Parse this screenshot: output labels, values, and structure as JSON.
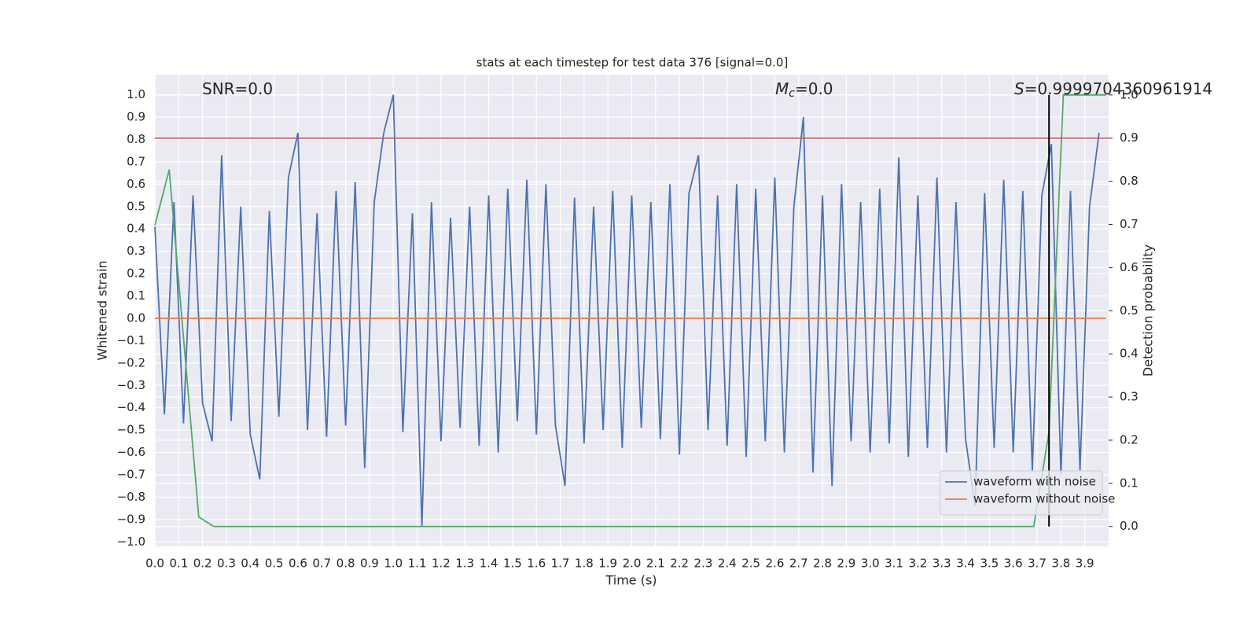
{
  "chart_data": {
    "type": "line",
    "title": "stats at each timestep for test data 376 [signal=0.0]",
    "xlabel": "Time (s)",
    "ylabel": "Whitened strain",
    "y2label": "Detection probability",
    "xlim": [
      0,
      4.0
    ],
    "ylim": [
      -1.02,
      1.09
    ],
    "y2lim": [
      -0.046,
      1.047
    ],
    "grid": true,
    "legend": "lower right",
    "xticks": [
      {
        "value": 0,
        "label": "0.0"
      },
      {
        "value": 0.1,
        "label": "0.1"
      },
      {
        "value": 0.2,
        "label": "0.2"
      },
      {
        "value": 0.3,
        "label": "0.3"
      },
      {
        "value": 0.4,
        "label": "0.4"
      },
      {
        "value": 0.5,
        "label": "0.5"
      },
      {
        "value": 0.6,
        "label": "0.6"
      },
      {
        "value": 0.7,
        "label": "0.7"
      },
      {
        "value": 0.8,
        "label": "0.8"
      },
      {
        "value": 0.9,
        "label": "0.9"
      },
      {
        "value": 1,
        "label": "1.0"
      },
      {
        "value": 1.1,
        "label": "1.1"
      },
      {
        "value": 1.2,
        "label": "1.2"
      },
      {
        "value": 1.3,
        "label": "1.3"
      },
      {
        "value": 1.4,
        "label": "1.4"
      },
      {
        "value": 1.5,
        "label": "1.5"
      },
      {
        "value": 1.6,
        "label": "1.6"
      },
      {
        "value": 1.7,
        "label": "1.7"
      },
      {
        "value": 1.8,
        "label": "1.8"
      },
      {
        "value": 1.9,
        "label": "1.9"
      },
      {
        "value": 2,
        "label": "2.0"
      },
      {
        "value": 2.1,
        "label": "2.1"
      },
      {
        "value": 2.2,
        "label": "2.2"
      },
      {
        "value": 2.3,
        "label": "2.3"
      },
      {
        "value": 2.4,
        "label": "2.4"
      },
      {
        "value": 2.5,
        "label": "2.5"
      },
      {
        "value": 2.6,
        "label": "2.6"
      },
      {
        "value": 2.7,
        "label": "2.7"
      },
      {
        "value": 2.8,
        "label": "2.8"
      },
      {
        "value": 2.9,
        "label": "2.9"
      },
      {
        "value": 3,
        "label": "3.0"
      },
      {
        "value": 3.1,
        "label": "3.1"
      },
      {
        "value": 3.2,
        "label": "3.2"
      },
      {
        "value": 3.3,
        "label": "3.3"
      },
      {
        "value": 3.4,
        "label": "3.4"
      },
      {
        "value": 3.5,
        "label": "3.5"
      },
      {
        "value": 3.6,
        "label": "3.6"
      },
      {
        "value": 3.7,
        "label": "3.7"
      },
      {
        "value": 3.8,
        "label": "3.8"
      },
      {
        "value": 3.9,
        "label": "3.9"
      }
    ],
    "yticks": [
      {
        "value": -1,
        "label": "−1.0"
      },
      {
        "value": -0.9,
        "label": "−0.9"
      },
      {
        "value": -0.8,
        "label": "−0.8"
      },
      {
        "value": -0.7,
        "label": "−0.7"
      },
      {
        "value": -0.6,
        "label": "−0.6"
      },
      {
        "value": -0.5,
        "label": "−0.5"
      },
      {
        "value": -0.4,
        "label": "−0.4"
      },
      {
        "value": -0.3,
        "label": "−0.3"
      },
      {
        "value": -0.2,
        "label": "−0.2"
      },
      {
        "value": -0.1,
        "label": "−0.1"
      },
      {
        "value": 0,
        "label": "0.0"
      },
      {
        "value": 0.1,
        "label": "0.1"
      },
      {
        "value": 0.2,
        "label": "0.2"
      },
      {
        "value": 0.3,
        "label": "0.3"
      },
      {
        "value": 0.4,
        "label": "0.4"
      },
      {
        "value": 0.5,
        "label": "0.5"
      },
      {
        "value": 0.6,
        "label": "0.6"
      },
      {
        "value": 0.7,
        "label": "0.7"
      },
      {
        "value": 0.8,
        "label": "0.8"
      },
      {
        "value": 0.9,
        "label": "0.9"
      },
      {
        "value": 1,
        "label": "1.0"
      }
    ],
    "y2ticks": [
      {
        "value": 0,
        "label": "0.0"
      },
      {
        "value": 0.1,
        "label": "0.1"
      },
      {
        "value": 0.2,
        "label": "0.2"
      },
      {
        "value": 0.3,
        "label": "0.3"
      },
      {
        "value": 0.4,
        "label": "0.4"
      },
      {
        "value": 0.5,
        "label": "0.5"
      },
      {
        "value": 0.6,
        "label": "0.6"
      },
      {
        "value": 0.7,
        "label": "0.7"
      },
      {
        "value": 0.8,
        "label": "0.8"
      },
      {
        "value": 0.9,
        "label": "0.9"
      },
      {
        "value": 1,
        "label": "1.0"
      }
    ],
    "series": [
      {
        "name": "waveform with noise",
        "color": "#4c72b0",
        "x": [
          0,
          0.04,
          0.08,
          0.12,
          0.16,
          0.2,
          0.24,
          0.28,
          0.32,
          0.36,
          0.4,
          0.44,
          0.48,
          0.52,
          0.56,
          0.6,
          0.64,
          0.68,
          0.72,
          0.76,
          0.8,
          0.84,
          0.88,
          0.92,
          0.96,
          1.0,
          1.04,
          1.08,
          1.12,
          1.16,
          1.2,
          1.24,
          1.28,
          1.32,
          1.36,
          1.4,
          1.44,
          1.48,
          1.52,
          1.56,
          1.6,
          1.64,
          1.68,
          1.72,
          1.76,
          1.8,
          1.84,
          1.88,
          1.92,
          1.96,
          2.0,
          2.04,
          2.08,
          2.12,
          2.16,
          2.2,
          2.24,
          2.28,
          2.32,
          2.36,
          2.4,
          2.44,
          2.48,
          2.52,
          2.56,
          2.6,
          2.64,
          2.68,
          2.72,
          2.76,
          2.8,
          2.84,
          2.88,
          2.92,
          2.96,
          3.0,
          3.04,
          3.08,
          3.12,
          3.16,
          3.2,
          3.24,
          3.28,
          3.32,
          3.36,
          3.4,
          3.44,
          3.48,
          3.52,
          3.56,
          3.6,
          3.64,
          3.68,
          3.72,
          3.76,
          3.8,
          3.84,
          3.88,
          3.92,
          3.96
        ],
        "values": [
          0.41,
          -0.43,
          0.52,
          -0.47,
          0.55,
          -0.38,
          -0.55,
          0.73,
          -0.46,
          0.5,
          -0.52,
          -0.72,
          0.48,
          -0.44,
          0.63,
          0.83,
          -0.5,
          0.47,
          -0.53,
          0.57,
          -0.48,
          0.61,
          -0.67,
          0.52,
          0.83,
          1.0,
          -0.51,
          0.47,
          -0.93,
          0.52,
          -0.55,
          0.45,
          -0.49,
          0.5,
          -0.57,
          0.55,
          -0.6,
          0.58,
          -0.46,
          0.62,
          -0.52,
          0.6,
          -0.48,
          -0.75,
          0.54,
          -0.56,
          0.5,
          -0.5,
          0.57,
          -0.58,
          0.55,
          -0.49,
          0.52,
          -0.54,
          0.6,
          -0.61,
          0.56,
          0.73,
          -0.5,
          0.55,
          -0.57,
          0.6,
          -0.62,
          0.58,
          -0.55,
          0.63,
          -0.6,
          0.5,
          0.9,
          -0.69,
          0.55,
          -0.75,
          0.6,
          -0.55,
          0.52,
          -0.6,
          0.58,
          -0.56,
          0.72,
          -0.62,
          0.55,
          -0.58,
          0.63,
          -0.6,
          0.52,
          -0.54,
          -0.84,
          0.56,
          -0.58,
          0.62,
          -0.6,
          0.57,
          -0.68,
          0.55,
          0.78,
          -0.7,
          0.57,
          -0.68,
          0.5,
          0.83
        ]
      },
      {
        "name": "waveform without noise",
        "color": "#dd8452",
        "x": [
          0,
          3.99
        ],
        "values": [
          0,
          0
        ]
      },
      {
        "color": "#55a868",
        "axis": "y2",
        "x": [
          0,
          0.06,
          0.184,
          0.247,
          3.686,
          3.75,
          3.81,
          3.99
        ],
        "values": [
          0.698,
          0.827,
          0.022,
          0,
          0,
          0.219,
          1.0,
          1.0
        ]
      }
    ],
    "hlines": [
      {
        "y": 0.9,
        "axis": "y2",
        "color": "#c44e52"
      }
    ],
    "vlines": [
      {
        "x": 3.75,
        "ymin": 0,
        "ymax": 1,
        "axis": "y2",
        "color": "#000000"
      }
    ],
    "annotations": [
      {
        "text": "SNR=0.0"
      },
      {
        "symbol": "M",
        "subscript": "c",
        "text": "=0.0"
      },
      {
        "symbol": "S",
        "text": "=0.9999704360961914"
      }
    ]
  }
}
